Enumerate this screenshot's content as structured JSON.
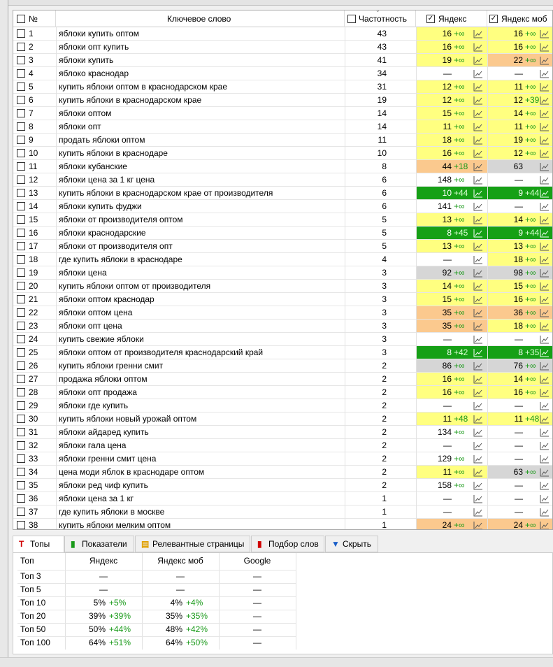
{
  "table": {
    "columns": {
      "number": "№",
      "keyword": "Ключевое слово",
      "frequency": "Частотность",
      "yandex": "Яндекс",
      "yandex_mob": "Яндекс моб"
    },
    "rows": [
      {
        "n": 1,
        "keyword": "яблоки купить оптом",
        "frequency": 43,
        "yandex": {
          "position": 16,
          "delta": "+∞",
          "bg": "#ffff80"
        },
        "yandex_mob": {
          "position": 16,
          "delta": "+∞",
          "bg": "#ffff80"
        }
      },
      {
        "n": 2,
        "keyword": "яблоки опт купить",
        "frequency": 43,
        "yandex": {
          "position": 16,
          "delta": "+∞",
          "bg": "#ffff80"
        },
        "yandex_mob": {
          "position": 16,
          "delta": "+∞",
          "bg": "#ffff80"
        }
      },
      {
        "n": 3,
        "keyword": "яблоки купить",
        "frequency": 41,
        "yandex": {
          "position": 19,
          "delta": "+∞",
          "bg": "#ffff80"
        },
        "yandex_mob": {
          "position": 22,
          "delta": "+∞",
          "bg": "#fbc98e"
        }
      },
      {
        "n": 4,
        "keyword": "яблоко краснодар",
        "frequency": 34,
        "yandex": {
          "position": "—",
          "bg": "#ffffff"
        },
        "yandex_mob": {
          "position": "—",
          "bg": "#ffffff"
        }
      },
      {
        "n": 5,
        "keyword": "купить яблоки оптом в краснодарском крае",
        "frequency": 31,
        "yandex": {
          "position": 12,
          "delta": "+∞",
          "bg": "#ffff80"
        },
        "yandex_mob": {
          "position": 11,
          "delta": "+∞",
          "bg": "#ffff80"
        }
      },
      {
        "n": 6,
        "keyword": "купить яблоки в краснодарском крае",
        "frequency": 19,
        "yandex": {
          "position": 12,
          "delta": "+∞",
          "bg": "#ffff80"
        },
        "yandex_mob": {
          "position": 12,
          "delta": "+39",
          "bg": "#ffff80"
        }
      },
      {
        "n": 7,
        "keyword": "яблоки оптом",
        "frequency": 14,
        "yandex": {
          "position": 15,
          "delta": "+∞",
          "bg": "#ffff80"
        },
        "yandex_mob": {
          "position": 14,
          "delta": "+∞",
          "bg": "#ffff80"
        }
      },
      {
        "n": 8,
        "keyword": "яблоки опт",
        "frequency": 14,
        "yandex": {
          "position": 11,
          "delta": "+∞",
          "bg": "#ffff80"
        },
        "yandex_mob": {
          "position": 11,
          "delta": "+∞",
          "bg": "#ffff80"
        }
      },
      {
        "n": 9,
        "keyword": "продать яблоки оптом",
        "frequency": 11,
        "yandex": {
          "position": 18,
          "delta": "+∞",
          "bg": "#ffff80"
        },
        "yandex_mob": {
          "position": 19,
          "delta": "+∞",
          "bg": "#ffff80"
        }
      },
      {
        "n": 10,
        "keyword": "купить яблоки в краснодаре",
        "frequency": 10,
        "yandex": {
          "position": 16,
          "delta": "+∞",
          "bg": "#ffff80"
        },
        "yandex_mob": {
          "position": 12,
          "delta": "+∞",
          "bg": "#ffff80"
        }
      },
      {
        "n": 11,
        "keyword": "яблоки кубанские",
        "frequency": 8,
        "yandex": {
          "position": 44,
          "delta": "+18",
          "bg": "#fbc98e"
        },
        "yandex_mob": {
          "position": 63,
          "bg": "#d6d6d6"
        }
      },
      {
        "n": 12,
        "keyword": "яблоки цена за 1 кг цена",
        "frequency": 6,
        "yandex": {
          "position": 148,
          "delta": "+∞",
          "bg": "#ffffff"
        },
        "yandex_mob": {
          "position": "—",
          "bg": "#ffffff"
        }
      },
      {
        "n": 13,
        "keyword": "купить яблоки в краснодарском крае от производителя",
        "frequency": 6,
        "yandex": {
          "position": 10,
          "delta": "+44",
          "bg": "#16a016"
        },
        "yandex_mob": {
          "position": 9,
          "delta": "+44",
          "bg": "#16a016"
        }
      },
      {
        "n": 14,
        "keyword": "яблоки купить фуджи",
        "frequency": 6,
        "yandex": {
          "position": 141,
          "delta": "+∞",
          "bg": "#ffffff"
        },
        "yandex_mob": {
          "position": "—",
          "bg": "#ffffff"
        }
      },
      {
        "n": 15,
        "keyword": "яблоки от производителя оптом",
        "frequency": 5,
        "yandex": {
          "position": 13,
          "delta": "+∞",
          "bg": "#ffff80"
        },
        "yandex_mob": {
          "position": 14,
          "delta": "+∞",
          "bg": "#ffff80"
        }
      },
      {
        "n": 16,
        "keyword": "яблоки краснодарские",
        "frequency": 5,
        "yandex": {
          "position": 8,
          "delta": "+45",
          "bg": "#16a016"
        },
        "yandex_mob": {
          "position": 9,
          "delta": "+44",
          "bg": "#16a016"
        }
      },
      {
        "n": 17,
        "keyword": "яблоки от производителя опт",
        "frequency": 5,
        "yandex": {
          "position": 13,
          "delta": "+∞",
          "bg": "#ffff80"
        },
        "yandex_mob": {
          "position": 13,
          "delta": "+∞",
          "bg": "#ffff80"
        }
      },
      {
        "n": 18,
        "keyword": "где купить яблоки в краснодаре",
        "frequency": 4,
        "yandex": {
          "position": "—",
          "bg": "#ffffff"
        },
        "yandex_mob": {
          "position": 18,
          "delta": "+∞",
          "bg": "#ffff80"
        }
      },
      {
        "n": 19,
        "keyword": "яблоки цена",
        "frequency": 3,
        "yandex": {
          "position": 92,
          "delta": "+∞",
          "bg": "#d6d6d6"
        },
        "yandex_mob": {
          "position": 98,
          "delta": "+∞",
          "bg": "#d6d6d6"
        }
      },
      {
        "n": 20,
        "keyword": "купить яблоки оптом от производителя",
        "frequency": 3,
        "yandex": {
          "position": 14,
          "delta": "+∞",
          "bg": "#ffff80"
        },
        "yandex_mob": {
          "position": 15,
          "delta": "+∞",
          "bg": "#ffff80"
        }
      },
      {
        "n": 21,
        "keyword": "яблоки оптом краснодар",
        "frequency": 3,
        "yandex": {
          "position": 15,
          "delta": "+∞",
          "bg": "#ffff80"
        },
        "yandex_mob": {
          "position": 16,
          "delta": "+∞",
          "bg": "#ffff80"
        }
      },
      {
        "n": 22,
        "keyword": "яблоки оптом цена",
        "frequency": 3,
        "yandex": {
          "position": 35,
          "delta": "+∞",
          "bg": "#fbc98e"
        },
        "yandex_mob": {
          "position": 36,
          "delta": "+∞",
          "bg": "#fbc98e"
        }
      },
      {
        "n": 23,
        "keyword": "яблоки опт цена",
        "frequency": 3,
        "yandex": {
          "position": 35,
          "delta": "+∞",
          "bg": "#fbc98e"
        },
        "yandex_mob": {
          "position": 18,
          "delta": "+∞",
          "bg": "#ffff80"
        }
      },
      {
        "n": 24,
        "keyword": "купить свежие яблоки",
        "frequency": 3,
        "yandex": {
          "position": "—",
          "bg": "#ffffff"
        },
        "yandex_mob": {
          "position": "—",
          "bg": "#ffffff"
        }
      },
      {
        "n": 25,
        "keyword": "яблоки оптом от производителя краснодарский край",
        "frequency": 3,
        "yandex": {
          "position": 8,
          "delta": "+42",
          "bg": "#16a016"
        },
        "yandex_mob": {
          "position": 8,
          "delta": "+35",
          "bg": "#16a016"
        }
      },
      {
        "n": 26,
        "keyword": "купить яблоки гренни смит",
        "frequency": 2,
        "yandex": {
          "position": 86,
          "delta": "+∞",
          "bg": "#d6d6d6"
        },
        "yandex_mob": {
          "position": 76,
          "delta": "+∞",
          "bg": "#d6d6d6"
        }
      },
      {
        "n": 27,
        "keyword": "продажа яблоки оптом",
        "frequency": 2,
        "yandex": {
          "position": 16,
          "delta": "+∞",
          "bg": "#ffff80"
        },
        "yandex_mob": {
          "position": 14,
          "delta": "+∞",
          "bg": "#ffff80"
        }
      },
      {
        "n": 28,
        "keyword": "яблоки опт продажа",
        "frequency": 2,
        "yandex": {
          "position": 16,
          "delta": "+∞",
          "bg": "#ffff80"
        },
        "yandex_mob": {
          "position": 16,
          "delta": "+∞",
          "bg": "#ffff80"
        }
      },
      {
        "n": 29,
        "keyword": "яблоки где купить",
        "frequency": 2,
        "yandex": {
          "position": "—",
          "bg": "#ffffff"
        },
        "yandex_mob": {
          "position": "—",
          "bg": "#ffffff"
        }
      },
      {
        "n": 30,
        "keyword": "купить яблоки новый урожай оптом",
        "frequency": 2,
        "yandex": {
          "position": 11,
          "delta": "+48",
          "bg": "#ffff80"
        },
        "yandex_mob": {
          "position": 11,
          "delta": "+48",
          "bg": "#ffff80"
        }
      },
      {
        "n": 31,
        "keyword": "яблоки айдаред купить",
        "frequency": 2,
        "yandex": {
          "position": 134,
          "delta": "+∞",
          "bg": "#ffffff"
        },
        "yandex_mob": {
          "position": "—",
          "bg": "#ffffff"
        }
      },
      {
        "n": 32,
        "keyword": "яблоки гала цена",
        "frequency": 2,
        "yandex": {
          "position": "—",
          "bg": "#ffffff"
        },
        "yandex_mob": {
          "position": "—",
          "bg": "#ffffff"
        }
      },
      {
        "n": 33,
        "keyword": "яблоки гренни смит цена",
        "frequency": 2,
        "yandex": {
          "position": 129,
          "delta": "+∞",
          "bg": "#ffffff"
        },
        "yandex_mob": {
          "position": "—",
          "bg": "#ffffff"
        }
      },
      {
        "n": 34,
        "keyword": "цена моди яблок в краснодаре оптом",
        "frequency": 2,
        "yandex": {
          "position": 11,
          "delta": "+∞",
          "bg": "#ffff80"
        },
        "yandex_mob": {
          "position": 63,
          "delta": "+∞",
          "bg": "#d6d6d6"
        }
      },
      {
        "n": 35,
        "keyword": "яблоки ред чиф купить",
        "frequency": 2,
        "yandex": {
          "position": 158,
          "delta": "+∞",
          "bg": "#ffffff"
        },
        "yandex_mob": {
          "position": "—",
          "bg": "#ffffff"
        }
      },
      {
        "n": 36,
        "keyword": "яблоки цена за 1 кг",
        "frequency": 1,
        "yandex": {
          "position": "—",
          "bg": "#ffffff"
        },
        "yandex_mob": {
          "position": "—",
          "bg": "#ffffff"
        }
      },
      {
        "n": 37,
        "keyword": "где купить яблоки в москве",
        "frequency": 1,
        "yandex": {
          "position": "—",
          "bg": "#ffffff"
        },
        "yandex_mob": {
          "position": "—",
          "bg": "#ffffff"
        }
      },
      {
        "n": 38,
        "keyword": "купить яблоки мелким оптом",
        "frequency": 1,
        "yandex": {
          "position": 24,
          "delta": "+∞",
          "bg": "#fbc98e"
        },
        "yandex_mob": {
          "position": 24,
          "delta": "+∞",
          "bg": "#fbc98e"
        }
      }
    ]
  },
  "tabs": [
    "Топы",
    "Показатели",
    "Релевантные страницы",
    "Подбор слов",
    "Скрыть"
  ],
  "tops": {
    "columns": [
      "Топ",
      "Яндекс",
      "Яндекс моб",
      "Google"
    ],
    "rows": [
      {
        "label": "Топ 3",
        "yandex": {
          "value": "—"
        },
        "yandex_mob": {
          "value": "—"
        },
        "google": "—"
      },
      {
        "label": "Топ 5",
        "yandex": {
          "value": "—"
        },
        "yandex_mob": {
          "value": "—"
        },
        "google": "—"
      },
      {
        "label": "Топ 10",
        "yandex": {
          "value": "5%",
          "delta": "+5%"
        },
        "yandex_mob": {
          "value": "4%",
          "delta": "+4%"
        },
        "google": "—"
      },
      {
        "label": "Топ 20",
        "yandex": {
          "value": "39%",
          "delta": "+39%"
        },
        "yandex_mob": {
          "value": "35%",
          "delta": "+35%"
        },
        "google": "—"
      },
      {
        "label": "Топ 50",
        "yandex": {
          "value": "50%",
          "delta": "+44%"
        },
        "yandex_mob": {
          "value": "48%",
          "delta": "+42%"
        },
        "google": "—"
      },
      {
        "label": "Топ 100",
        "yandex": {
          "value": "64%",
          "delta": "+51%"
        },
        "yandex_mob": {
          "value": "64%",
          "delta": "+50%"
        },
        "google": "—"
      }
    ]
  }
}
